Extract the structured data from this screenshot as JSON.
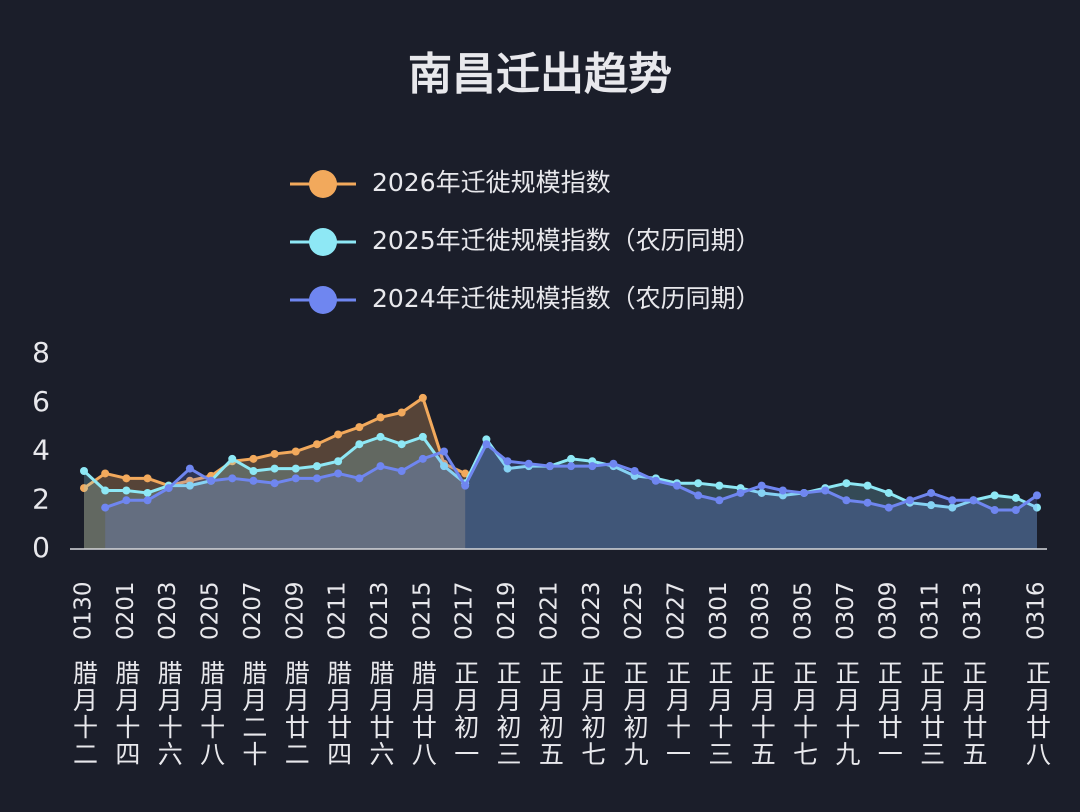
{
  "chart_data": {
    "type": "line",
    "title": "南昌迁出趋势",
    "categories": [
      "0130",
      null,
      "0201",
      null,
      "0203",
      null,
      "0205",
      null,
      "0207",
      null,
      "0209",
      null,
      "0211",
      null,
      "0213",
      null,
      "0215",
      null,
      "0217",
      null,
      "0219",
      null,
      "0221",
      null,
      "0223",
      null,
      "0225",
      null,
      "0227",
      null,
      "0301",
      null,
      "0303",
      null,
      "0305",
      null,
      "0307",
      null,
      "0309",
      null,
      "0311",
      null,
      "0313",
      null,
      null,
      "0316"
    ],
    "lunar_labels": [
      "腊月十二",
      null,
      "腊月十四",
      null,
      "腊月十六",
      null,
      "腊月十八",
      null,
      "腊月二十",
      null,
      "腊月廿二",
      null,
      "腊月廿四",
      null,
      "腊月廿六",
      null,
      "腊月廿八",
      null,
      "正月初一",
      null,
      "正月初三",
      null,
      "正月初五",
      null,
      "正月初七",
      null,
      "正月初九",
      null,
      "正月十一",
      null,
      "正月十三",
      null,
      "正月十五",
      null,
      "正月十七",
      null,
      "正月十九",
      null,
      "正月廿一",
      null,
      "正月廿三",
      null,
      "正月廿五",
      null,
      null,
      "正月廿八"
    ],
    "series": [
      {
        "name": "2026年迁徙规模指数",
        "color": "#f2a95c",
        "values": [
          2.5,
          3.1,
          2.9,
          2.9,
          2.6,
          2.8,
          3.0,
          3.6,
          3.7,
          3.9,
          4.0,
          4.3,
          4.7,
          5.0,
          5.4,
          5.6,
          6.2,
          3.5,
          3.1,
          null,
          null,
          null,
          null,
          null,
          null,
          null,
          null,
          null,
          null,
          null,
          null,
          null,
          null,
          null,
          null,
          null,
          null,
          null,
          null,
          null,
          null,
          null,
          null,
          null,
          null,
          null
        ]
      },
      {
        "name": "2025年迁徙规模指数（农历同期）",
        "color": "#8ee8f5",
        "values": [
          3.2,
          2.4,
          2.4,
          2.3,
          2.6,
          2.6,
          2.8,
          3.7,
          3.2,
          3.3,
          3.3,
          3.4,
          3.6,
          4.3,
          4.6,
          4.3,
          4.6,
          3.4,
          2.7,
          4.5,
          3.3,
          3.4,
          3.4,
          3.7,
          3.6,
          3.4,
          3.0,
          2.9,
          2.7,
          2.7,
          2.6,
          2.5,
          2.3,
          2.2,
          2.3,
          2.5,
          2.7,
          2.6,
          2.3,
          1.9,
          1.8,
          1.7,
          2.0,
          2.2,
          2.1,
          1.7
        ]
      },
      {
        "name": "2024年迁徙规模指数（农历同期）",
        "color": "#6f86f0",
        "values": [
          null,
          1.7,
          2.0,
          2.0,
          2.5,
          3.3,
          2.8,
          2.9,
          2.8,
          2.7,
          2.9,
          2.9,
          3.1,
          2.9,
          3.4,
          3.2,
          3.7,
          4.0,
          2.6,
          4.3,
          3.6,
          3.5,
          3.4,
          3.4,
          3.4,
          3.5,
          3.2,
          2.8,
          2.6,
          2.2,
          2.0,
          2.3,
          2.6,
          2.4,
          2.3,
          2.4,
          2.0,
          1.9,
          1.7,
          2.0,
          2.3,
          2.0,
          2.0,
          1.6,
          1.6,
          2.2
        ]
      }
    ],
    "ylim": [
      0,
      8
    ],
    "yticks": [
      0,
      2,
      4,
      6,
      8
    ],
    "grid": false
  }
}
